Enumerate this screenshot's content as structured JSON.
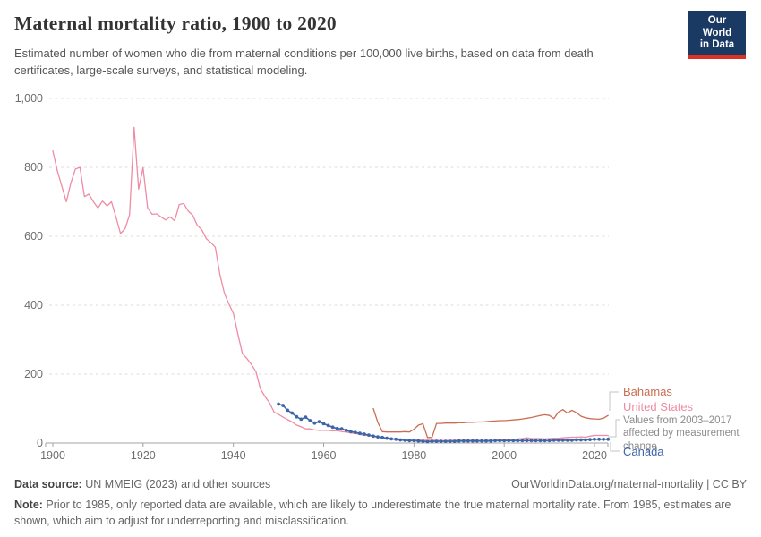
{
  "header": {
    "title": "Maternal mortality ratio, 1900 to 2020",
    "subtitle": "Estimated number of women who die from maternal conditions per 100,000 live births, based on data from death certificates, large-scale surveys, and statistical modeling.",
    "logo": {
      "line1": "Our World",
      "line2": "in Data",
      "bg_color": "#1b3a63",
      "accent_color": "#dc3223"
    }
  },
  "chart_data": {
    "type": "line",
    "title": "Maternal mortality ratio, 1900 to 2020",
    "xlabel": "",
    "ylabel": "",
    "x_range": [
      1900,
      2023
    ],
    "y_range": [
      0,
      1000
    ],
    "x_ticks": [
      1900,
      1920,
      1940,
      1960,
      1980,
      2000,
      2020
    ],
    "y_ticks": [
      0,
      200,
      400,
      600,
      800,
      1000
    ],
    "y_tick_labels": [
      "0",
      "200",
      "400",
      "600",
      "800",
      "1,000"
    ],
    "grid": "horizontal dashed",
    "legend_position": "right",
    "annotation": "Values from 2003–2017 affected by measurement change",
    "series": [
      {
        "name": "United States",
        "color": "#ef8ba5",
        "markers": false,
        "start_year": 1900,
        "values": [
          848,
          790,
          745,
          700,
          755,
          795,
          800,
          715,
          722,
          700,
          682,
          702,
          688,
          700,
          655,
          608,
          622,
          662,
          916,
          737,
          799,
          682,
          664,
          665,
          656,
          647,
          656,
          645,
          692,
          695,
          673,
          661,
          632,
          619,
          593,
          582,
          568,
          489,
          435,
          404,
          376,
          316,
          259,
          245,
          228,
          207,
          157,
          135,
          117,
          90,
          83,
          75,
          68,
          61,
          52,
          47,
          41,
          41,
          38,
          37,
          37,
          37,
          35,
          36,
          33,
          32,
          29,
          28,
          25,
          22,
          22,
          19,
          19,
          15,
          15,
          13,
          12,
          11,
          10,
          10,
          9,
          9,
          8,
          8,
          8,
          8,
          7,
          7,
          8,
          8,
          8,
          8,
          8,
          8,
          8,
          7,
          8,
          8,
          7,
          10,
          10,
          10,
          9,
          12,
          13,
          15,
          13,
          13,
          13,
          12,
          13,
          14,
          14,
          15,
          16,
          17,
          17,
          18,
          17,
          20,
          22,
          22,
          22,
          22
        ]
      },
      {
        "name": "Bahamas",
        "color": "#c96e53",
        "markers": false,
        "start_year": 1971,
        "values": [
          100,
          60,
          33,
          32,
          32,
          32,
          32,
          33,
          32,
          40,
          52,
          56,
          16,
          16,
          57,
          57,
          58,
          58,
          58,
          59,
          59,
          60,
          60,
          61,
          61,
          62,
          63,
          64,
          65,
          65,
          66,
          67,
          68,
          70,
          72,
          74,
          77,
          80,
          82,
          80,
          71,
          90,
          97,
          87,
          95,
          88,
          78,
          73,
          71,
          70,
          69,
          72,
          80
        ]
      },
      {
        "name": "Canada",
        "color": "#3d66a8",
        "markers": true,
        "start_year": 1950,
        "values": [
          113,
          109,
          95,
          87,
          76,
          69,
          75,
          65,
          58,
          62,
          56,
          51,
          46,
          42,
          41,
          37,
          33,
          31,
          28,
          26,
          23,
          20,
          18,
          16,
          14,
          12,
          11,
          9,
          8,
          7,
          7,
          6,
          5,
          4,
          5,
          5,
          5,
          5,
          5,
          5,
          6,
          6,
          6,
          6,
          6,
          6,
          6,
          6,
          7,
          7,
          7,
          7,
          7,
          7,
          7,
          7,
          7,
          7,
          7,
          7,
          7,
          8,
          8,
          8,
          8,
          8,
          9,
          9,
          9,
          10,
          11,
          11,
          11,
          11
        ]
      }
    ]
  },
  "footer": {
    "source_label": "Data source:",
    "source_text": " UN MMEIG (2023) and other sources",
    "credit": "OurWorldinData.org/maternal-mortality | CC BY",
    "note_label": "Note:",
    "note_text": " Prior to 1985, only reported data are available, which are likely to underestimate the true maternal mortality rate. From 1985, estimates are shown, which aim to adjust for underreporting and misclassification."
  }
}
